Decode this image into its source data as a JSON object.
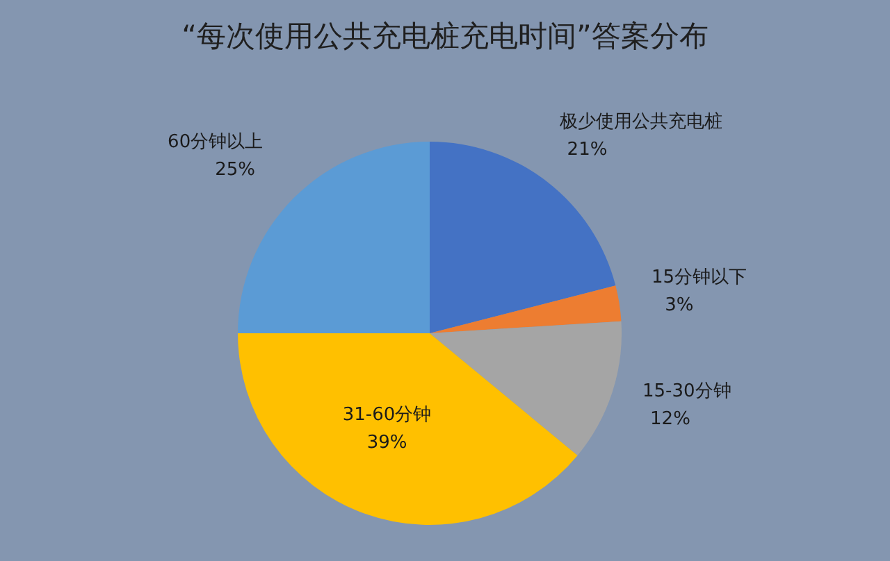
{
  "chart_data": {
    "type": "pie",
    "title": "“每次使用公共充电桩充电时间”答案分布",
    "categories": [
      "极少使用公共充电桩",
      "15分钟以下",
      "15-30分钟",
      "31-60分钟",
      "60分钟以上"
    ],
    "values": [
      21,
      3,
      12,
      39,
      25
    ],
    "colors": [
      "#4472c4",
      "#ed7d31",
      "#a5a5a5",
      "#ffc000",
      "#5b9bd5"
    ],
    "value_labels": [
      "21%",
      "3%",
      "12%",
      "39%",
      "25%"
    ]
  }
}
